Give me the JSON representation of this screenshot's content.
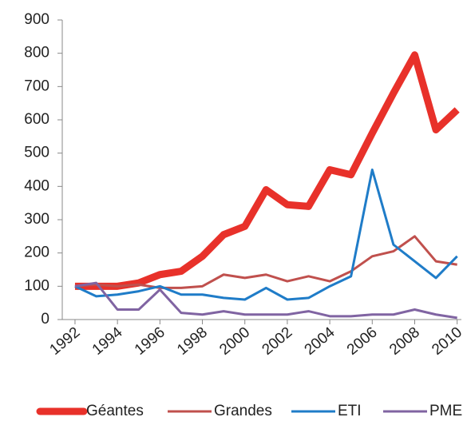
{
  "chart_data": {
    "type": "line",
    "x": [
      1992,
      1993,
      1994,
      1995,
      1996,
      1997,
      1998,
      1999,
      2000,
      2001,
      2002,
      2003,
      2004,
      2005,
      2006,
      2007,
      2008,
      2009,
      2010
    ],
    "series": [
      {
        "name": "Géantes",
        "color": "#e8312a",
        "values": [
          100,
          100,
          100,
          110,
          135,
          145,
          190,
          255,
          280,
          390,
          345,
          340,
          450,
          435,
          560,
          680,
          795,
          570,
          630
        ]
      },
      {
        "name": "Grandes",
        "color": "#c0504d",
        "values": [
          100,
          105,
          100,
          105,
          95,
          95,
          100,
          135,
          125,
          135,
          115,
          130,
          115,
          145,
          190,
          205,
          250,
          175,
          165
        ]
      },
      {
        "name": "ETI",
        "color": "#1f7cc8",
        "values": [
          100,
          70,
          75,
          85,
          100,
          75,
          75,
          65,
          60,
          95,
          60,
          65,
          100,
          130,
          450,
          225,
          175,
          125,
          190
        ]
      },
      {
        "name": "PME",
        "color": "#8064a2",
        "values": [
          100,
          110,
          30,
          30,
          90,
          20,
          15,
          25,
          15,
          15,
          15,
          25,
          10,
          10,
          15,
          15,
          30,
          15,
          5
        ]
      }
    ],
    "xlim": [
      1991.4,
      2010.2
    ],
    "xticks": [
      1992,
      1994,
      1996,
      1998,
      2000,
      2002,
      2004,
      2006,
      2008,
      2010
    ],
    "ylim": [
      0,
      900
    ],
    "yticks": [
      0,
      100,
      200,
      300,
      400,
      500,
      600,
      700,
      800,
      900
    ],
    "grid": false
  }
}
